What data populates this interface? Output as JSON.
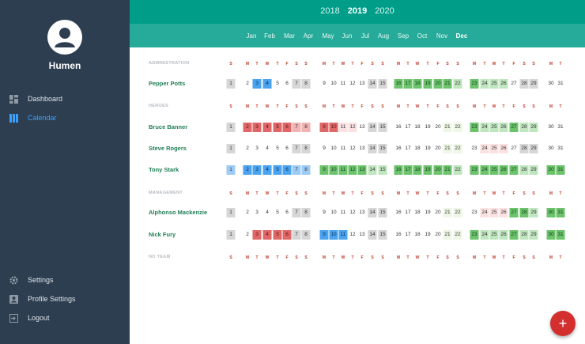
{
  "app": {
    "name": "Humen"
  },
  "sidebar": {
    "top_items": [
      {
        "label": "Dashboard",
        "icon": "dashboard-icon",
        "active": false
      },
      {
        "label": "Calendar",
        "icon": "calendar-icon",
        "active": true
      }
    ],
    "bottom_items": [
      {
        "label": "Settings",
        "icon": "gear-icon"
      },
      {
        "label": "Profile Settings",
        "icon": "profile-icon"
      },
      {
        "label": "Logout",
        "icon": "logout-icon"
      }
    ]
  },
  "years": [
    "2018",
    "2019",
    "2020"
  ],
  "selected_year": "2019",
  "months": [
    "Jan",
    "Feb",
    "Mar",
    "Apr",
    "May",
    "Jun",
    "Jul",
    "Aug",
    "Sep",
    "Oct",
    "Nov",
    "Dec"
  ],
  "selected_month": "Dec",
  "weekday_letters": [
    "S",
    "M",
    "T",
    "W",
    "T",
    "F",
    "S",
    "S",
    "M",
    "T",
    "W",
    "T",
    "F",
    "S",
    "S",
    "M",
    "T",
    "W",
    "T",
    "F",
    "S",
    "S",
    "M",
    "T",
    "W",
    "T",
    "F",
    "S",
    "S",
    "M",
    "T"
  ],
  "days": [
    "1",
    "2",
    "3",
    "4",
    "5",
    "6",
    "7",
    "8",
    "9",
    "10",
    "11",
    "12",
    "13",
    "14",
    "15",
    "16",
    "17",
    "18",
    "19",
    "20",
    "21",
    "22",
    "23",
    "24",
    "25",
    "26",
    "27",
    "28",
    "29",
    "30",
    "31"
  ],
  "sections": [
    {
      "label": "ADMINISTRATION",
      "people": [
        {
          "name": "Pepper Potts",
          "marks": {
            "1": "gray",
            "3": "blue",
            "4": "blue",
            "7": "gray",
            "8": "gray",
            "14": "gray",
            "15": "gray",
            "16": "green",
            "17": "green",
            "18": "green",
            "19": "green",
            "20": "green",
            "21": "green",
            "22": "lgreen",
            "23": "green",
            "24": "lgreen",
            "25": "lgreen",
            "26": "lgreen",
            "28": "gray",
            "29": "gray"
          }
        }
      ]
    },
    {
      "label": "HEROES",
      "people": [
        {
          "name": "Bruce Banner",
          "marks": {
            "1": "gray",
            "2": "red",
            "3": "red",
            "4": "red",
            "5": "red",
            "6": "red",
            "7": "lred",
            "8": "lred",
            "9": "red",
            "10": "red",
            "11": "pink",
            "12": "pink",
            "14": "gray",
            "15": "gray",
            "21": "pale",
            "22": "pale",
            "23": "green",
            "24": "lgreen",
            "25": "lgreen",
            "26": "lgreen",
            "27": "green",
            "28": "lgreen",
            "29": "lgreen"
          }
        },
        {
          "name": "Steve Rogers",
          "marks": {
            "1": "gray",
            "7": "gray",
            "8": "gray",
            "14": "gray",
            "15": "gray",
            "21": "pale",
            "22": "pale",
            "24": "pink",
            "25": "pink",
            "26": "pink",
            "28": "gray",
            "29": "gray"
          }
        },
        {
          "name": "Tony Stark",
          "marks": {
            "1": "lblue",
            "2": "blue",
            "3": "blue",
            "4": "blue",
            "5": "blue",
            "6": "blue",
            "7": "lblue",
            "8": "lblue",
            "9": "green",
            "10": "green",
            "11": "green",
            "12": "green",
            "13": "green",
            "14": "lgreen",
            "15": "lgreen",
            "16": "green",
            "17": "green",
            "18": "green",
            "19": "green",
            "20": "green",
            "21": "green",
            "22": "lgreen",
            "23": "green",
            "24": "green",
            "25": "green",
            "26": "green",
            "27": "green",
            "28": "lgreen",
            "29": "lgreen",
            "30": "green",
            "31": "green"
          }
        }
      ]
    },
    {
      "label": "MANAGEMENT",
      "people": [
        {
          "name": "Alphonso Mackenzie",
          "marks": {
            "1": "gray",
            "7": "gray",
            "8": "gray",
            "14": "gray",
            "15": "gray",
            "21": "pale",
            "22": "pale",
            "24": "pink",
            "25": "pink",
            "26": "pink",
            "27": "green",
            "28": "green",
            "29": "lgreen",
            "30": "green",
            "31": "green"
          }
        },
        {
          "name": "Nick Fury",
          "marks": {
            "1": "gray",
            "3": "red",
            "4": "red",
            "5": "red",
            "6": "red",
            "7": "gray",
            "8": "gray",
            "9": "blue",
            "10": "blue",
            "11": "blue",
            "14": "gray",
            "15": "gray",
            "21": "pale",
            "22": "pale",
            "23": "green",
            "24": "lgreen",
            "25": "lgreen",
            "26": "lgreen",
            "27": "green",
            "28": "lgreen",
            "29": "lgreen",
            "30": "green",
            "31": "green"
          }
        }
      ]
    },
    {
      "label": "NO TEAM",
      "people": []
    }
  ],
  "fab": {
    "label": "+"
  },
  "colors": {
    "sidebar_bg": "#2d3e50",
    "header_bg": "#009e89",
    "month_bar_bg": "#26ab9a",
    "active_nav": "#3aa0ff",
    "name_green": "#1f7f55",
    "weekday_red": "#c0392b",
    "fab_red": "#d32f2f"
  }
}
